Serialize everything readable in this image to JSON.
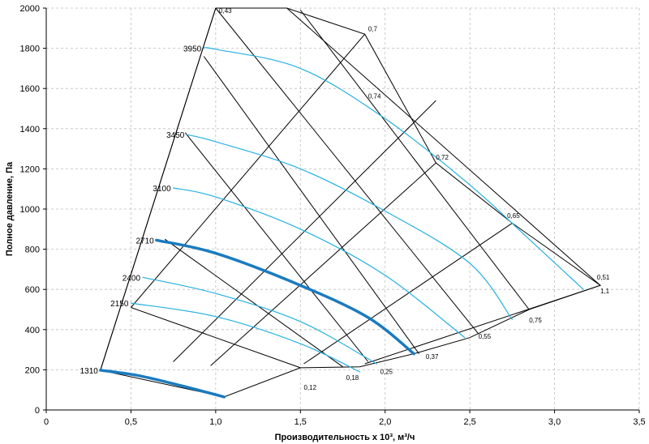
{
  "chart_data": {
    "type": "line",
    "xlabel": "Производительность х 10³, м³/ч",
    "ylabel": "Полное давление, Па",
    "xlim": [
      0,
      3.5
    ],
    "ylim": [
      0,
      2000
    ],
    "x_ticks": [
      "0",
      "0,5",
      "1,0",
      "1,5",
      "2,0",
      "2,5",
      "3,0",
      "3,5"
    ],
    "y_ticks": [
      "0",
      "200",
      "400",
      "600",
      "800",
      "1000",
      "1200",
      "1400",
      "1600",
      "1800",
      "2000"
    ],
    "grid": true,
    "speed_curves": [
      {
        "label": "1310",
        "highlight": true,
        "points": [
          [
            0.32,
            198
          ],
          [
            0.55,
            170
          ],
          [
            0.8,
            120
          ],
          [
            1.05,
            65
          ]
        ]
      },
      {
        "label": "2150",
        "highlight": false,
        "points": [
          [
            0.5,
            532
          ],
          [
            1.0,
            465
          ],
          [
            1.5,
            330
          ],
          [
            1.85,
            190
          ]
        ]
      },
      {
        "label": "2400",
        "highlight": false,
        "points": [
          [
            0.57,
            660
          ],
          [
            1.0,
            580
          ],
          [
            1.5,
            440
          ],
          [
            1.95,
            230
          ]
        ]
      },
      {
        "label": "2710",
        "highlight": true,
        "points": [
          [
            0.65,
            845
          ],
          [
            1.0,
            780
          ],
          [
            1.5,
            620
          ],
          [
            1.9,
            460
          ],
          [
            2.17,
            280
          ]
        ]
      },
      {
        "label": "3100",
        "highlight": false,
        "points": [
          [
            0.75,
            1105
          ],
          [
            1.0,
            1060
          ],
          [
            1.5,
            900
          ],
          [
            2.0,
            670
          ],
          [
            2.47,
            360
          ]
        ]
      },
      {
        "label": "3450",
        "highlight": false,
        "points": [
          [
            0.83,
            1370
          ],
          [
            1.0,
            1335
          ],
          [
            1.5,
            1200
          ],
          [
            2.0,
            990
          ],
          [
            2.5,
            730
          ],
          [
            2.75,
            450
          ]
        ]
      },
      {
        "label": "3950",
        "highlight": false,
        "points": [
          [
            0.93,
            1800
          ],
          [
            1.0,
            1795
          ],
          [
            1.5,
            1700
          ],
          [
            2.0,
            1450
          ],
          [
            2.5,
            1120
          ],
          [
            2.85,
            850
          ],
          [
            3.17,
            600
          ]
        ]
      }
    ],
    "power_lines": [
      {
        "label": "0,12",
        "points": [
          [
            0.5,
            510
          ],
          [
            1.5,
            210
          ]
        ]
      },
      {
        "label": "0,18",
        "points": [
          [
            0.7,
            850
          ],
          [
            1.75,
            215
          ]
        ]
      },
      {
        "label": "0,25",
        "points": [
          [
            0.82,
            1380
          ],
          [
            1.9,
            240
          ]
        ]
      },
      {
        "label": "0,37",
        "points": [
          [
            0.93,
            1760
          ],
          [
            2.2,
            280
          ]
        ]
      },
      {
        "label": "0,55",
        "points": [
          [
            1.0,
            2000
          ],
          [
            2.55,
            380
          ]
        ]
      },
      {
        "label": "0,75",
        "points": [
          [
            1.5,
            1990
          ],
          [
            2.85,
            500
          ]
        ]
      },
      {
        "label": "1,1",
        "points": [
          [
            1.42,
            2000
          ],
          [
            3.27,
            620
          ]
        ]
      }
    ],
    "efficiency_lines": [
      {
        "label": "0,43",
        "points": [
          [
            0.32,
            198
          ],
          [
            1.0,
            2000
          ]
        ]
      },
      {
        "label": "0,7",
        "points": [
          [
            0.5,
            510
          ],
          [
            1.88,
            1870
          ]
        ]
      },
      {
        "label": "0,74",
        "points": [
          [
            0.75,
            240
          ],
          [
            2.3,
            1540
          ]
        ]
      },
      {
        "label": "0,72",
        "points": [
          [
            0.97,
            220
          ],
          [
            2.3,
            1230
          ]
        ]
      },
      {
        "label": "0,65",
        "points": [
          [
            1.52,
            230
          ],
          [
            2.75,
            930
          ]
        ]
      },
      {
        "label": "0,51",
        "points": [
          [
            1.88,
            230
          ],
          [
            3.27,
            620
          ]
        ]
      }
    ],
    "envelope": [
      [
        0.32,
        198
      ],
      [
        1.05,
        65
      ],
      [
        1.5,
        210
      ],
      [
        1.85,
        215
      ],
      [
        2.17,
        280
      ],
      [
        2.5,
        360
      ],
      [
        2.85,
        500
      ],
      [
        3.27,
        620
      ],
      [
        2.75,
        930
      ],
      [
        2.3,
        1230
      ],
      [
        1.88,
        1870
      ],
      [
        1.42,
        2000
      ],
      [
        1.0,
        2000
      ],
      [
        0.32,
        198
      ]
    ],
    "annotations": [
      {
        "text": "0,43",
        "x": 1.02,
        "y": 1975
      },
      {
        "text": "0,7",
        "x": 1.9,
        "y": 1885
      },
      {
        "text": "0,74",
        "x": 1.9,
        "y": 1550
      },
      {
        "text": "0,72",
        "x": 2.3,
        "y": 1245
      },
      {
        "text": "0,65",
        "x": 2.72,
        "y": 955
      },
      {
        "text": "0,51",
        "x": 3.25,
        "y": 650
      },
      {
        "text": "1,1",
        "x": 3.27,
        "y": 580
      },
      {
        "text": "0,75",
        "x": 2.85,
        "y": 435
      },
      {
        "text": "0,55",
        "x": 2.55,
        "y": 355
      },
      {
        "text": "0,37",
        "x": 2.24,
        "y": 255
      },
      {
        "text": "0,25",
        "x": 1.97,
        "y": 180
      },
      {
        "text": "0,18",
        "x": 1.77,
        "y": 150
      },
      {
        "text": "0,12",
        "x": 1.52,
        "y": 100
      }
    ]
  }
}
